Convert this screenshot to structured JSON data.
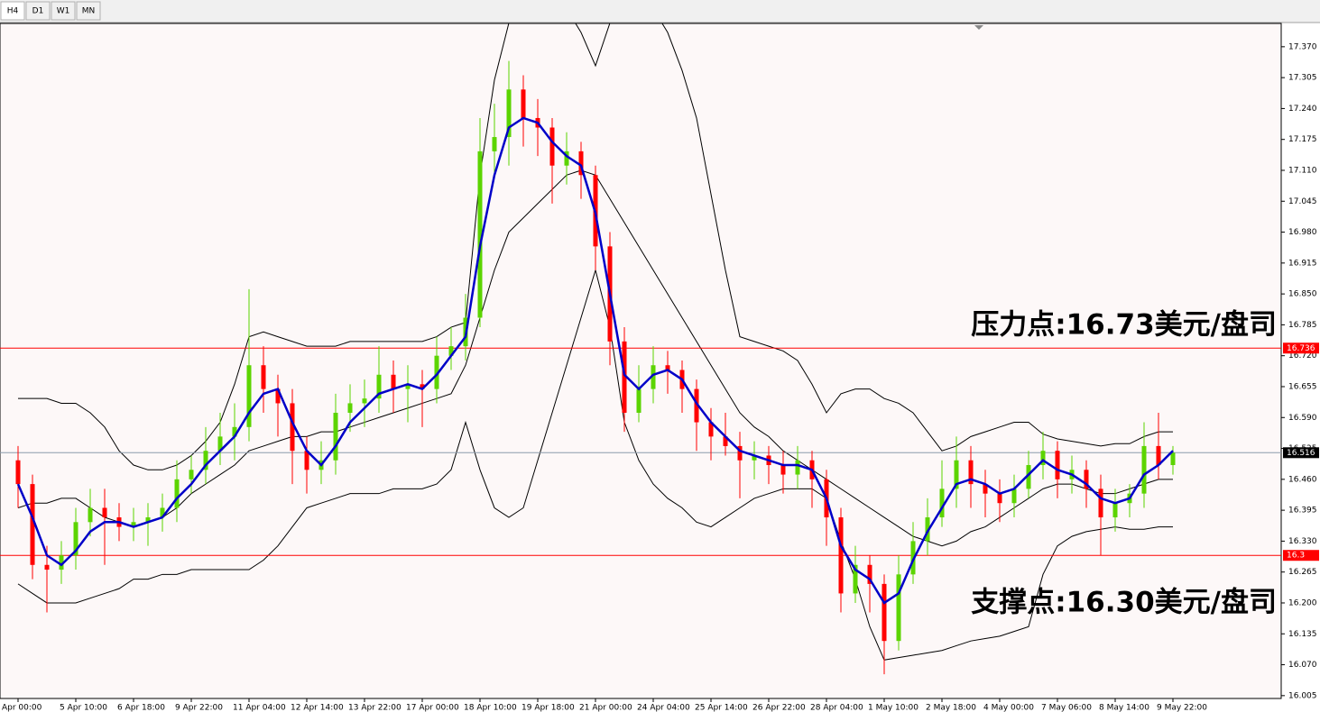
{
  "toolbar": [
    "H4",
    "D1",
    "W1",
    "MN"
  ],
  "chart_data": {
    "type": "candlestick",
    "categories": [
      "Apr 00:00",
      null,
      null,
      null,
      "5 Apr 10:00",
      null,
      null,
      null,
      "6 Apr 18:00",
      null,
      null,
      null,
      "9 Apr 22:00",
      null,
      null,
      null,
      "11 Apr 04:00",
      null,
      null,
      null,
      "12 Apr 14:00",
      null,
      null,
      null,
      "13 Apr 22:00",
      null,
      null,
      null,
      "17 Apr 00:00",
      null,
      null,
      null,
      "18 Apr 10:00",
      null,
      null,
      null,
      "19 Apr 18:00",
      null,
      null,
      null,
      "21 Apr 00:00",
      null,
      null,
      null,
      "24 Apr 04:00",
      null,
      null,
      null,
      "25 Apr 14:00",
      null,
      null,
      null,
      "26 Apr 22:00",
      null,
      null,
      null,
      "28 Apr 04:00",
      null,
      null,
      null,
      "1 May 10:00",
      null,
      null,
      null,
      "2 May 18:00",
      null,
      null,
      null,
      "4 May 00:00",
      null,
      null,
      null,
      "7 May 06:00",
      null,
      null,
      null,
      "8 May 14:00",
      null,
      null,
      null,
      "9 May 22:00"
    ],
    "ohlc": [
      [
        16.5,
        16.53,
        16.4,
        16.45
      ],
      [
        16.45,
        16.47,
        16.25,
        16.28
      ],
      [
        16.28,
        16.32,
        16.18,
        16.27
      ],
      [
        16.27,
        16.33,
        16.24,
        16.3
      ],
      [
        16.3,
        16.4,
        16.27,
        16.37
      ],
      [
        16.37,
        16.44,
        16.34,
        16.4
      ],
      [
        16.4,
        16.44,
        16.28,
        16.38
      ],
      [
        16.38,
        16.41,
        16.33,
        16.36
      ],
      [
        16.36,
        16.4,
        16.33,
        16.37
      ],
      [
        16.37,
        16.41,
        16.32,
        16.38
      ],
      [
        16.38,
        16.43,
        16.35,
        16.4
      ],
      [
        16.4,
        16.5,
        16.37,
        16.46
      ],
      [
        16.46,
        16.51,
        16.43,
        16.48
      ],
      [
        16.48,
        16.57,
        16.45,
        16.52
      ],
      [
        16.52,
        16.6,
        16.49,
        16.55
      ],
      [
        16.55,
        16.62,
        16.5,
        16.57
      ],
      [
        16.57,
        16.86,
        16.54,
        16.7
      ],
      [
        16.7,
        16.74,
        16.6,
        16.65
      ],
      [
        16.65,
        16.68,
        16.55,
        16.62
      ],
      [
        16.62,
        16.65,
        16.45,
        16.52
      ],
      [
        16.52,
        16.55,
        16.43,
        16.48
      ],
      [
        16.48,
        16.54,
        16.45,
        16.5
      ],
      [
        16.5,
        16.64,
        16.47,
        16.6
      ],
      [
        16.6,
        16.66,
        16.56,
        16.62
      ],
      [
        16.62,
        16.67,
        16.57,
        16.63
      ],
      [
        16.63,
        16.74,
        16.6,
        16.68
      ],
      [
        16.68,
        16.71,
        16.6,
        16.65
      ],
      [
        16.65,
        16.7,
        16.58,
        16.66
      ],
      [
        16.66,
        16.69,
        16.57,
        16.65
      ],
      [
        16.65,
        16.76,
        16.62,
        16.72
      ],
      [
        16.72,
        16.78,
        16.69,
        16.74
      ],
      [
        16.74,
        16.85,
        16.71,
        16.8
      ],
      [
        16.8,
        17.22,
        16.78,
        17.15
      ],
      [
        17.15,
        17.25,
        17.1,
        17.18
      ],
      [
        17.18,
        17.34,
        17.12,
        17.28
      ],
      [
        17.28,
        17.31,
        17.16,
        17.22
      ],
      [
        17.22,
        17.26,
        17.14,
        17.2
      ],
      [
        17.2,
        17.22,
        17.04,
        17.12
      ],
      [
        17.12,
        17.19,
        17.08,
        17.15
      ],
      [
        17.15,
        17.17,
        17.05,
        17.1
      ],
      [
        17.1,
        17.12,
        16.9,
        16.95
      ],
      [
        16.95,
        16.98,
        16.7,
        16.75
      ],
      [
        16.75,
        16.78,
        16.56,
        16.6
      ],
      [
        16.6,
        16.7,
        16.58,
        16.65
      ],
      [
        16.65,
        16.74,
        16.62,
        16.7
      ],
      [
        16.7,
        16.73,
        16.64,
        16.69
      ],
      [
        16.69,
        16.71,
        16.6,
        16.65
      ],
      [
        16.65,
        16.67,
        16.52,
        16.58
      ],
      [
        16.58,
        16.61,
        16.5,
        16.55
      ],
      [
        16.55,
        16.6,
        16.51,
        16.53
      ],
      [
        16.53,
        16.56,
        16.42,
        16.5
      ],
      [
        16.5,
        16.54,
        16.46,
        16.51
      ],
      [
        16.51,
        16.53,
        16.45,
        16.49
      ],
      [
        16.49,
        16.52,
        16.43,
        16.47
      ],
      [
        16.47,
        16.53,
        16.44,
        16.5
      ],
      [
        16.5,
        16.52,
        16.4,
        16.46
      ],
      [
        16.46,
        16.48,
        16.32,
        16.38
      ],
      [
        16.38,
        16.4,
        16.18,
        16.22
      ],
      [
        16.22,
        16.32,
        16.2,
        16.28
      ],
      [
        16.28,
        16.3,
        16.18,
        16.24
      ],
      [
        16.24,
        16.26,
        16.05,
        16.12
      ],
      [
        16.12,
        16.3,
        16.1,
        16.26
      ],
      [
        16.26,
        16.37,
        16.24,
        16.33
      ],
      [
        16.33,
        16.42,
        16.3,
        16.38
      ],
      [
        16.38,
        16.5,
        16.36,
        16.44
      ],
      [
        16.44,
        16.55,
        16.4,
        16.5
      ],
      [
        16.5,
        16.53,
        16.4,
        16.45
      ],
      [
        16.45,
        16.48,
        16.38,
        16.43
      ],
      [
        16.43,
        16.46,
        16.37,
        16.41
      ],
      [
        16.41,
        16.47,
        16.38,
        16.44
      ],
      [
        16.44,
        16.52,
        16.42,
        16.49
      ],
      [
        16.49,
        16.56,
        16.46,
        16.52
      ],
      [
        16.52,
        16.54,
        16.42,
        16.46
      ],
      [
        16.46,
        16.51,
        16.43,
        16.48
      ],
      [
        16.48,
        16.5,
        16.4,
        16.44
      ],
      [
        16.44,
        16.47,
        16.3,
        16.38
      ],
      [
        16.38,
        16.44,
        16.35,
        16.41
      ],
      [
        16.41,
        16.45,
        16.38,
        16.43
      ],
      [
        16.43,
        16.58,
        16.4,
        16.53
      ],
      [
        16.53,
        16.6,
        16.46,
        16.49
      ],
      [
        16.49,
        16.53,
        16.47,
        16.516
      ]
    ],
    "ma": [
      16.45,
      16.38,
      16.3,
      16.28,
      16.31,
      16.35,
      16.37,
      16.37,
      16.36,
      16.37,
      16.38,
      16.42,
      16.45,
      16.49,
      16.52,
      16.55,
      16.6,
      16.64,
      16.65,
      16.58,
      16.52,
      16.49,
      16.53,
      16.58,
      16.61,
      16.64,
      16.65,
      16.66,
      16.65,
      16.68,
      16.72,
      16.76,
      16.95,
      17.1,
      17.2,
      17.22,
      17.21,
      17.17,
      17.14,
      17.12,
      17.02,
      16.85,
      16.68,
      16.65,
      16.68,
      16.69,
      16.67,
      16.62,
      16.58,
      16.55,
      16.52,
      16.51,
      16.5,
      16.49,
      16.49,
      16.48,
      16.42,
      16.32,
      16.27,
      16.25,
      16.2,
      16.22,
      16.29,
      16.35,
      16.4,
      16.45,
      16.46,
      16.45,
      16.43,
      16.44,
      16.47,
      16.5,
      16.48,
      16.47,
      16.45,
      16.42,
      16.41,
      16.42,
      16.47,
      16.49,
      16.52
    ],
    "upper": [
      16.63,
      16.63,
      16.63,
      16.62,
      16.62,
      16.6,
      16.57,
      16.52,
      16.49,
      16.48,
      16.48,
      16.49,
      16.51,
      16.54,
      16.58,
      16.66,
      16.76,
      16.77,
      16.76,
      16.75,
      16.74,
      16.74,
      16.74,
      16.75,
      16.75,
      16.75,
      16.75,
      16.75,
      16.75,
      16.76,
      16.78,
      16.79,
      17.1,
      17.3,
      17.42,
      17.45,
      17.46,
      17.46,
      17.45,
      17.4,
      17.33,
      17.42,
      17.46,
      17.46,
      17.45,
      17.4,
      17.32,
      17.22,
      17.06,
      16.9,
      16.76,
      16.75,
      16.74,
      16.73,
      16.71,
      16.66,
      16.6,
      16.64,
      16.65,
      16.65,
      16.63,
      16.62,
      16.6,
      16.56,
      16.52,
      16.53,
      16.55,
      16.56,
      16.57,
      16.58,
      16.58,
      16.555,
      16.545,
      16.54,
      16.535,
      16.53,
      16.535,
      16.535,
      16.55,
      16.56,
      16.56
    ],
    "mid": [
      16.4,
      16.41,
      16.41,
      16.42,
      16.42,
      16.4,
      16.38,
      16.37,
      16.36,
      16.37,
      16.38,
      16.4,
      16.43,
      16.45,
      16.47,
      16.49,
      16.52,
      16.53,
      16.54,
      16.55,
      16.55,
      16.56,
      16.56,
      16.57,
      16.58,
      16.59,
      16.6,
      16.61,
      16.62,
      16.63,
      16.64,
      16.7,
      16.8,
      16.9,
      16.98,
      17.01,
      17.04,
      17.07,
      17.1,
      17.11,
      17.1,
      17.05,
      17.0,
      16.95,
      16.9,
      16.85,
      16.8,
      16.75,
      16.7,
      16.65,
      16.6,
      16.57,
      16.55,
      16.52,
      16.5,
      16.48,
      16.46,
      16.44,
      16.42,
      16.4,
      16.38,
      16.36,
      16.34,
      16.33,
      16.32,
      16.33,
      16.35,
      16.36,
      16.38,
      16.4,
      16.42,
      16.44,
      16.45,
      16.45,
      16.44,
      16.43,
      16.43,
      16.44,
      16.45,
      16.46,
      16.46
    ],
    "lower": [
      16.24,
      16.22,
      16.2,
      16.2,
      16.2,
      16.21,
      16.22,
      16.23,
      16.25,
      16.25,
      16.26,
      16.26,
      16.27,
      16.27,
      16.27,
      16.27,
      16.27,
      16.29,
      16.32,
      16.36,
      16.4,
      16.41,
      16.42,
      16.43,
      16.43,
      16.43,
      16.44,
      16.44,
      16.44,
      16.45,
      16.48,
      16.58,
      16.48,
      16.4,
      16.38,
      16.4,
      16.5,
      16.6,
      16.7,
      16.8,
      16.9,
      16.78,
      16.58,
      16.5,
      16.45,
      16.42,
      16.4,
      16.37,
      16.36,
      16.38,
      16.4,
      16.42,
      16.43,
      16.44,
      16.44,
      16.44,
      16.42,
      16.33,
      16.25,
      16.15,
      16.08,
      16.085,
      16.09,
      16.095,
      16.1,
      16.11,
      16.12,
      16.125,
      16.13,
      16.14,
      16.15,
      16.26,
      16.32,
      16.34,
      16.35,
      16.355,
      16.36,
      16.355,
      16.355,
      16.36,
      16.36
    ],
    "up_color": "#5cd400",
    "down_color": "#ff0000",
    "ma_color": "#0000c8",
    "band_color": "#000000",
    "ylim": [
      15.999,
      17.419
    ],
    "yticks": [
      {
        "value": 17.37,
        "label": "17.370"
      },
      {
        "value": 17.305,
        "label": "17.305"
      },
      {
        "value": 17.24,
        "label": "17.240"
      },
      {
        "value": 17.175,
        "label": "17.175"
      },
      {
        "value": 17.11,
        "label": "17.110"
      },
      {
        "value": 17.045,
        "label": "17.045"
      },
      {
        "value": 16.98,
        "label": "16.980"
      },
      {
        "value": 16.915,
        "label": "16.915"
      },
      {
        "value": 16.85,
        "label": "16.850"
      },
      {
        "value": 16.785,
        "label": "16.785"
      },
      {
        "value": 16.72,
        "label": "16.720"
      },
      {
        "value": 16.655,
        "label": "16.655"
      },
      {
        "value": 16.59,
        "label": "16.590"
      },
      {
        "value": 16.525,
        "label": "16.525"
      },
      {
        "value": 16.46,
        "label": "16.460"
      },
      {
        "value": 16.395,
        "label": "16.395"
      },
      {
        "value": 16.33,
        "label": "16.330"
      },
      {
        "value": 16.265,
        "label": "16.265"
      },
      {
        "value": 16.2,
        "label": "16.200"
      },
      {
        "value": 16.135,
        "label": "16.135"
      },
      {
        "value": 16.07,
        "label": "16.070"
      },
      {
        "value": 16.005,
        "label": "16.005"
      }
    ],
    "levels": [
      {
        "value": 16.736,
        "color": "#ff0000"
      },
      {
        "value": 16.3,
        "color": "#ff0000"
      },
      {
        "value": 16.516,
        "color": "#8c9cac",
        "box": "#000000"
      }
    ],
    "annotations": [
      {
        "text": "压力点:16.73美元/盘司"
      },
      {
        "text": "支撑点:16.30美元/盘司"
      }
    ]
  }
}
